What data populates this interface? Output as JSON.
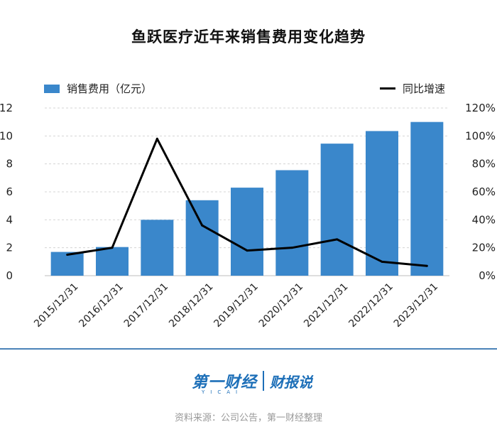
{
  "header": {
    "title": "鱼跃医疗近年来销售费用变化趋势"
  },
  "legend": {
    "bar_label": "销售费用（亿元）",
    "line_label": "同比增速"
  },
  "footer": {
    "logo_text": "第一财经",
    "logo_sub": "YICAI",
    "logo_column": "财报说",
    "source": "资料来源：公司公告，第一财经整理"
  },
  "colors": {
    "bar": "#3a87cb",
    "line": "#000000",
    "divider": "#4b83b8",
    "brand": "#1d6fb8"
  },
  "chart_data": {
    "type": "bar",
    "title": "鱼跃医疗近年来销售费用变化趋势",
    "categories": [
      "2015/12/31",
      "2016/12/31",
      "2017/12/31",
      "2018/12/31",
      "2019/12/31",
      "2020/12/31",
      "2021/12/31",
      "2022/12/31",
      "2023/12/31"
    ],
    "series": [
      {
        "name": "销售费用（亿元）",
        "type": "bar",
        "axis": "left",
        "values": [
          1.7,
          2.05,
          4.0,
          5.4,
          6.3,
          7.55,
          9.45,
          10.35,
          11.0
        ]
      },
      {
        "name": "同比增速",
        "type": "line",
        "axis": "right",
        "values": [
          15,
          20,
          98,
          36,
          18,
          20,
          26,
          10,
          7
        ]
      }
    ],
    "y_left": {
      "ylim": [
        0,
        12
      ],
      "ticks": [
        0,
        2,
        4,
        6,
        8,
        10,
        12
      ]
    },
    "y_right": {
      "ylim": [
        0,
        120
      ],
      "ticks": [
        "0%",
        "20%",
        "40%",
        "60%",
        "80%",
        "100%",
        "120%"
      ]
    },
    "grid": true,
    "legend_position": "top"
  }
}
